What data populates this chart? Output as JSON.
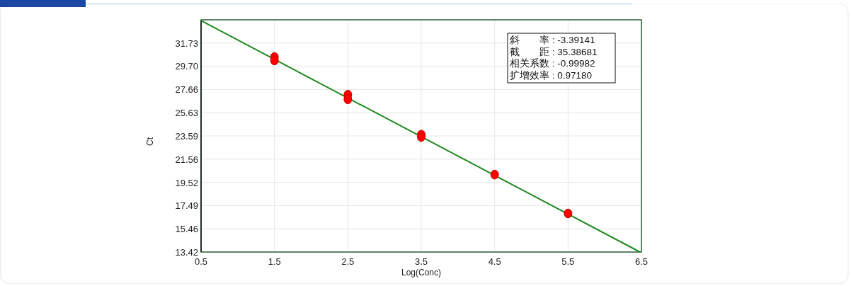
{
  "chart_data": {
    "type": "scatter",
    "xlabel": "Log(Conc)",
    "ylabel": "Ct",
    "xlim": [
      0.5,
      6.5
    ],
    "ylim": [
      13.42,
      33.76
    ],
    "xticks": [
      0.5,
      1.5,
      2.5,
      3.5,
      4.5,
      5.5,
      6.5
    ],
    "yticks": [
      13.42,
      15.46,
      17.49,
      19.52,
      21.56,
      23.59,
      25.63,
      27.66,
      {
        "value": 29.7,
        "label": "29.70"
      },
      31.73
    ],
    "grid": true,
    "marker": "circle",
    "series": [
      {
        "type": "scatter",
        "color": "#ff0000",
        "x": [
          1.5,
          1.5,
          2.5,
          2.5,
          3.5,
          3.5,
          4.5,
          5.5
        ],
        "values": [
          30.5,
          30.2,
          27.2,
          26.8,
          23.7,
          23.5,
          20.2,
          16.8
        ]
      },
      {
        "type": "line",
        "marker": "none",
        "color": "#1f8a1f",
        "x": [
          0.5,
          6.48
        ],
        "values": [
          33.69,
          13.42
        ]
      }
    ],
    "annotations": [
      "斜　　率 : -3.39141",
      "截　　距 : 35.38681",
      "相关系数 : -0.99982",
      "扩增效率 : 0.97180"
    ]
  }
}
